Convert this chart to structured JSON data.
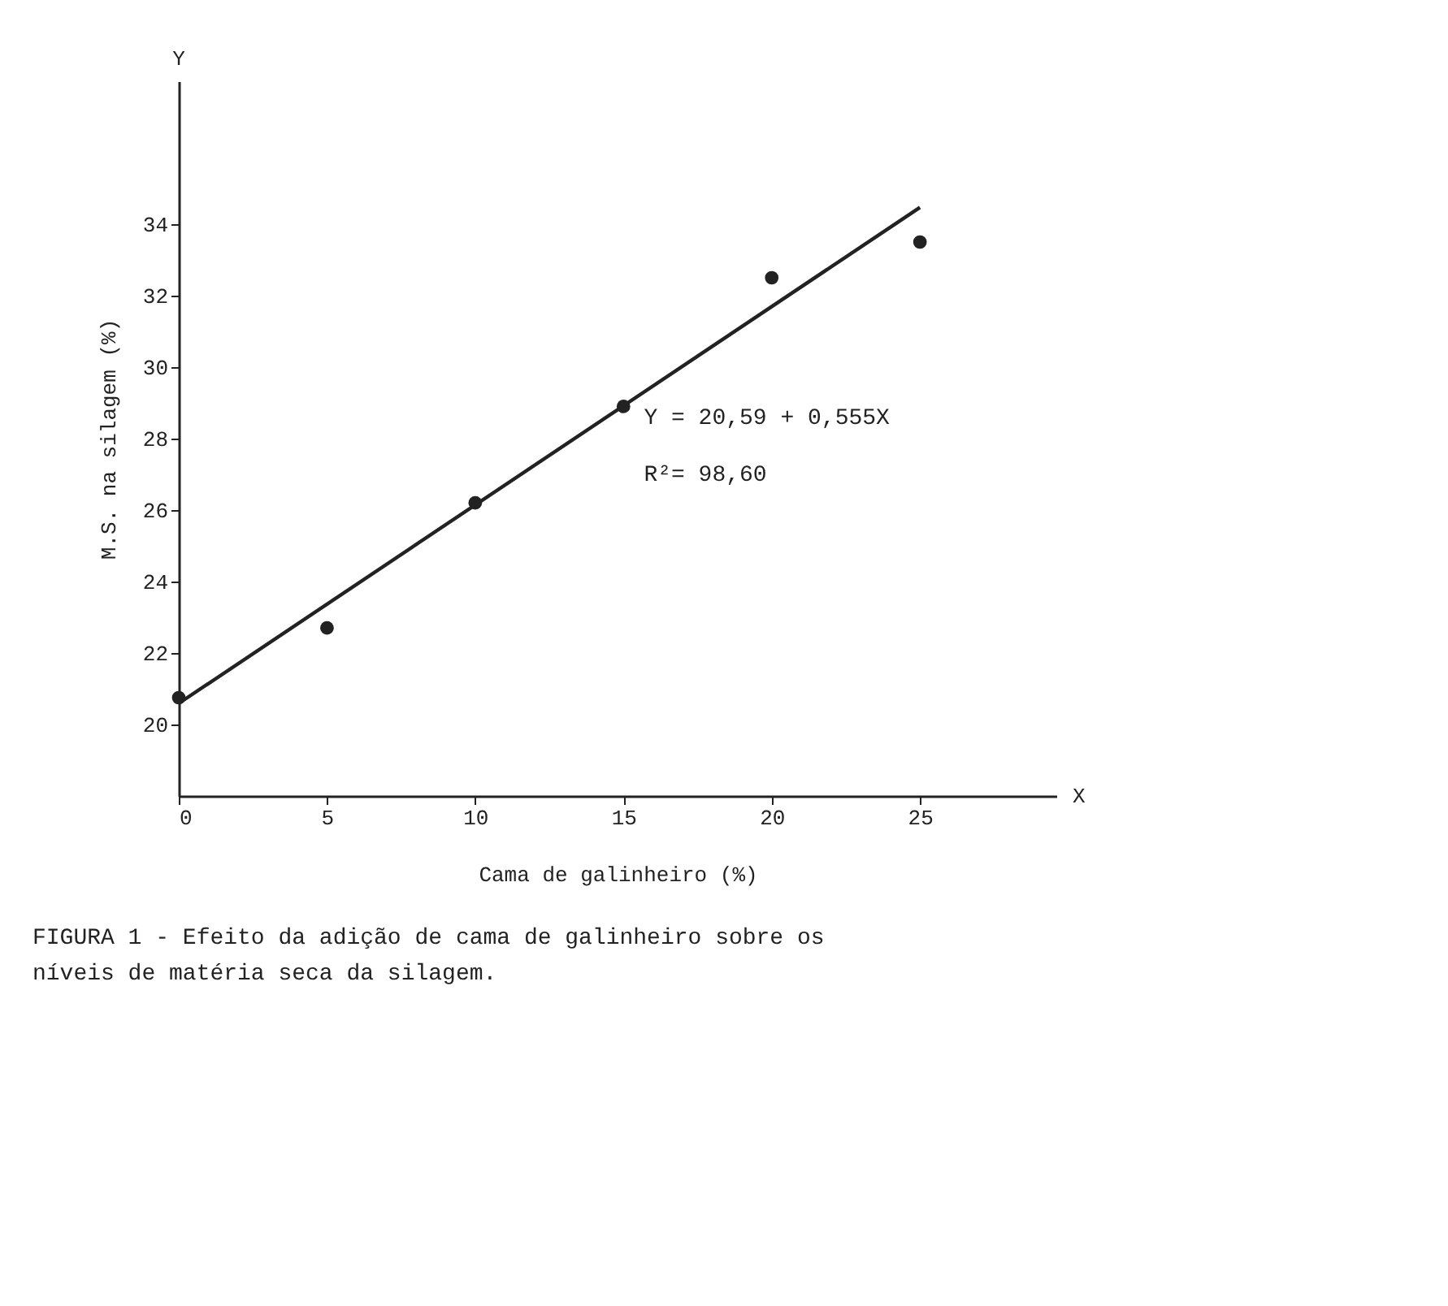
{
  "chart_data": {
    "type": "scatter",
    "xlabel": "Cama de galinheiro (%)",
    "ylabel": "M.S. na silagem (%)",
    "x": [
      0,
      5,
      10,
      15,
      20,
      25
    ],
    "series": [
      {
        "color": "#222222",
        "marker": "circle",
        "values": [
          20.75,
          22.7,
          26.2,
          28.9,
          32.5,
          33.5
        ]
      },
      {
        "type": "line",
        "color": "#222222",
        "line_style": "solid",
        "x": [
          0,
          25
        ],
        "values": [
          20.59,
          34.47
        ]
      }
    ],
    "xlim": [
      0,
      29.6
    ],
    "ylim": [
      18,
      38
    ],
    "xticks": [
      0,
      5,
      10,
      15,
      20,
      25
    ],
    "yticks": [
      20,
      22,
      24,
      26,
      28,
      30,
      32,
      34
    ],
    "grid": false,
    "annotations": [
      "Y",
      "X",
      "Y = 20,59 + 0,555X",
      "R²= 98,60",
      "FIGURA 1 - Efeito da adição de cama de galinheiro sobre os níveis de matéria seca da silagem."
    ]
  }
}
